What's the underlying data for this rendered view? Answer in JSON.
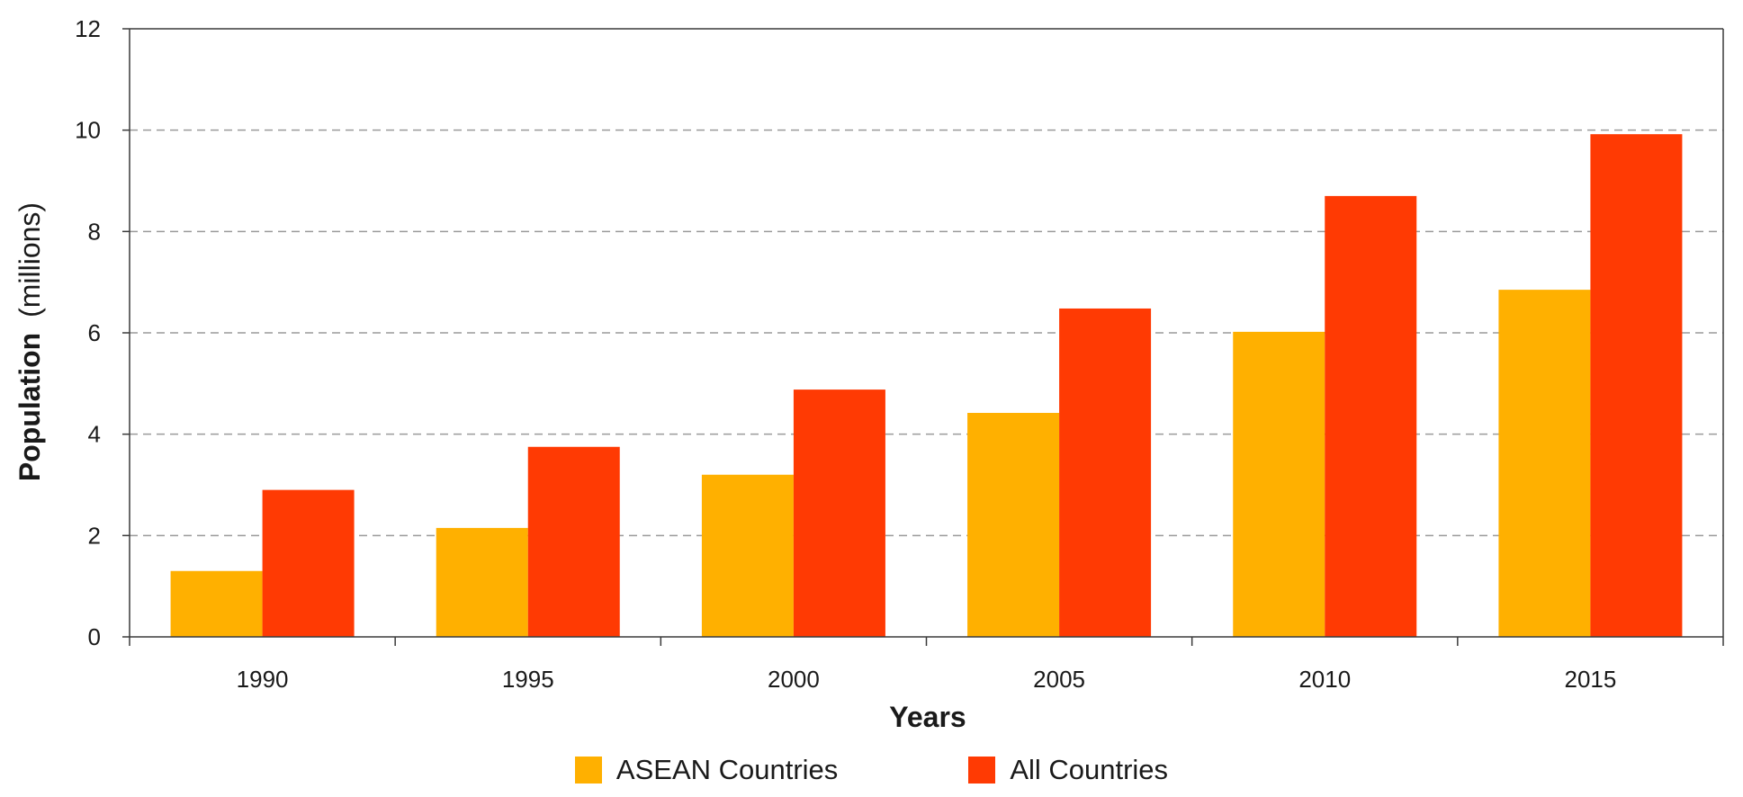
{
  "chart_data": {
    "type": "bar",
    "categories": [
      "1990",
      "1995",
      "2000",
      "2005",
      "2010",
      "2015"
    ],
    "series": [
      {
        "name": "ASEAN Countries",
        "color": "#FFB000",
        "values": [
          1.3,
          2.15,
          3.2,
          4.42,
          6.02,
          6.85
        ]
      },
      {
        "name": "All Countries",
        "color": "#FF3A03",
        "values": [
          2.9,
          3.75,
          4.88,
          6.48,
          8.7,
          9.92
        ]
      }
    ],
    "xlabel": "Years",
    "ylabel": {
      "bold": "Population",
      "rest": "(millions)"
    },
    "ylim": [
      0,
      12
    ],
    "yticks": [
      0,
      2,
      4,
      6,
      8,
      10,
      12
    ],
    "grid": "horizontal-dashed",
    "legend_position": "bottom-center"
  }
}
